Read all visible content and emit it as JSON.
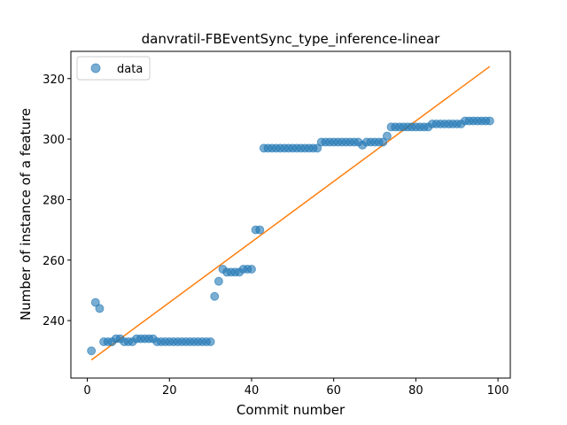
{
  "chart_data": {
    "type": "scatter",
    "title": "danvratil-FBEventSync_type_inference-linear",
    "xlabel": "Commit number",
    "ylabel": "Number of instance of a feature",
    "xlim": [
      -4.0,
      103.0
    ],
    "ylim": [
      221.0,
      329.0
    ],
    "xticks": [
      0,
      20,
      40,
      60,
      80,
      100
    ],
    "yticks": [
      240,
      260,
      280,
      300,
      320
    ],
    "grid": false,
    "legend_position": "top-left",
    "colors": {
      "data": "#1f77b4",
      "fit": "#ff7f0e"
    },
    "series": [
      {
        "name": "data",
        "kind": "scatter",
        "x": [
          1,
          2,
          3,
          4,
          5,
          6,
          7,
          8,
          9,
          10,
          11,
          12,
          13,
          14,
          15,
          16,
          17,
          18,
          19,
          20,
          21,
          22,
          23,
          24,
          25,
          26,
          27,
          28,
          29,
          30,
          31,
          32,
          33,
          34,
          35,
          36,
          37,
          38,
          39,
          40,
          41,
          42,
          43,
          44,
          45,
          46,
          47,
          48,
          49,
          50,
          51,
          52,
          53,
          54,
          55,
          56,
          57,
          58,
          59,
          60,
          61,
          62,
          63,
          64,
          65,
          66,
          67,
          68,
          69,
          70,
          71,
          72,
          73,
          74,
          75,
          76,
          77,
          78,
          79,
          80,
          81,
          82,
          83,
          84,
          85,
          86,
          87,
          88,
          89,
          90,
          91,
          92,
          93,
          94,
          95,
          96,
          97,
          98
        ],
        "y": [
          230,
          246,
          244,
          233,
          233,
          233,
          234,
          234,
          233,
          233,
          233,
          234,
          234,
          234,
          234,
          234,
          233,
          233,
          233,
          233,
          233,
          233,
          233,
          233,
          233,
          233,
          233,
          233,
          233,
          233,
          248,
          253,
          257,
          256,
          256,
          256,
          256,
          257,
          257,
          257,
          270,
          270,
          297,
          297,
          297,
          297,
          297,
          297,
          297,
          297,
          297,
          297,
          297,
          297,
          297,
          297,
          299,
          299,
          299,
          299,
          299,
          299,
          299,
          299,
          299,
          299,
          298,
          299,
          299,
          299,
          299,
          299,
          301,
          304,
          304,
          304,
          304,
          304,
          304,
          304,
          304,
          304,
          304,
          305,
          305,
          305,
          305,
          305,
          305,
          305,
          305,
          306,
          306,
          306,
          306,
          306,
          306,
          306
        ]
      },
      {
        "name": "",
        "kind": "line",
        "x": [
          1,
          98
        ],
        "y": [
          227,
          324
        ]
      }
    ]
  }
}
